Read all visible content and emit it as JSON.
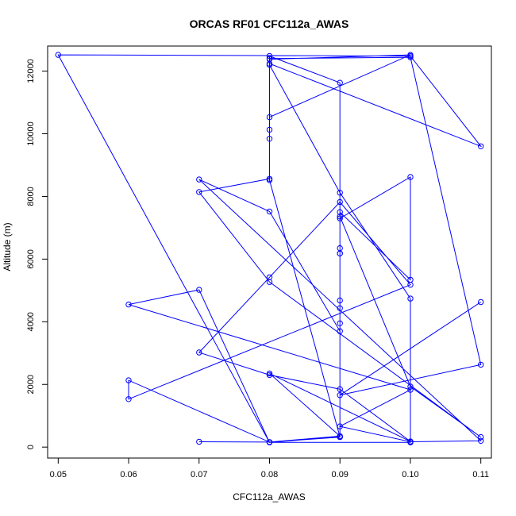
{
  "chart_data": {
    "type": "line",
    "title": "ORCAS RF01 CFC112a_AWAS",
    "xlabel": "CFC112a_AWAS",
    "ylabel": "Altitude (m)",
    "xlim": [
      0.0485,
      0.1115
    ],
    "ylim": [
      -350,
      12800
    ],
    "x_ticks": [
      0.05,
      0.06,
      0.07,
      0.08,
      0.09,
      0.1,
      0.11
    ],
    "x_tick_labels": [
      "0.05",
      "0.06",
      "0.07",
      "0.08",
      "0.09",
      "0.10",
      "0.11"
    ],
    "y_ticks": [
      0,
      2000,
      4000,
      6000,
      8000,
      10000,
      12000
    ],
    "y_tick_labels": [
      "0",
      "2000",
      "4000",
      "6000",
      "8000",
      "10000",
      "12000"
    ],
    "grid": false,
    "markers": "open-circle",
    "series": [
      {
        "color": "#0000ff",
        "x": [
          0.07,
          0.08,
          0.09,
          0.08,
          0.1,
          0.09,
          0.08,
          0.07,
          0.08,
          0.09,
          0.1,
          0.06,
          0.06,
          0.08,
          0.09,
          0.09,
          0.09,
          0.09,
          0.1,
          0.1,
          0.09,
          0.09,
          0.09,
          0.1,
          0.11,
          0.08,
          0.07,
          0.08,
          0.08,
          0.08,
          0.09,
          0.09,
          0.09,
          0.09,
          0.09,
          0.08,
          0.07,
          0.11,
          0.1,
          0.09,
          0.1,
          0.06,
          0.07,
          0.08,
          0.09,
          0.08,
          0.08,
          0.08,
          0.1,
          0.08,
          0.08,
          0.09,
          0.1,
          0.1,
          0.08,
          0.05,
          0.1,
          0.11,
          0.08,
          0.08,
          0.1,
          0.11,
          0.09,
          0.11
        ],
        "y": [
          170,
          160,
          350,
          2350,
          180,
          1850,
          2300,
          3020,
          5420,
          7820,
          5180,
          1530,
          2130,
          160,
          320,
          6180,
          6350,
          7300,
          8620,
          5340,
          7500,
          6180,
          7360,
          1930,
          320,
          5270,
          8140,
          8560,
          10130,
          12480,
          11630,
          4680,
          4430,
          3950,
          3700,
          7520,
          8540,
          200,
          170,
          660,
          1830,
          4550,
          5020,
          150,
          330,
          8520,
          9840,
          10530,
          12520,
          12380,
          12200,
          8120,
          4740,
          150,
          150,
          12520,
          12480,
          9600,
          12240,
          12400,
          12440,
          2630,
          1660,
          4630
        ]
      }
    ]
  }
}
